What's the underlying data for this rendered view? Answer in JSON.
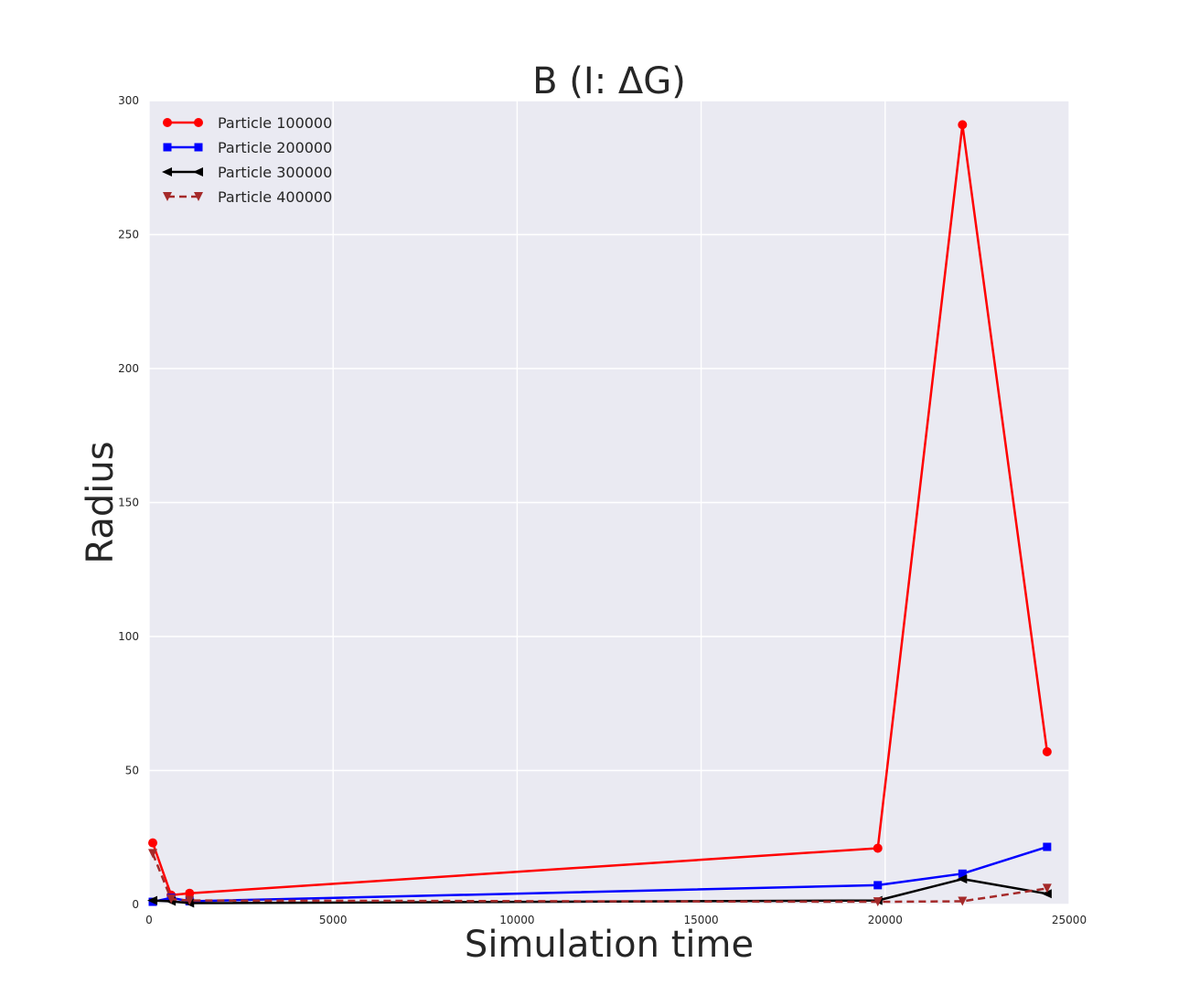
{
  "chart_data": {
    "type": "line",
    "title": "B (I: ΔG)",
    "xlabel": "Simulation time",
    "ylabel": "Radius",
    "xlim": [
      0,
      25000
    ],
    "ylim": [
      0,
      300
    ],
    "xticks": [
      0,
      5000,
      10000,
      15000,
      20000,
      25000
    ],
    "yticks": [
      0,
      50,
      100,
      150,
      200,
      250,
      300
    ],
    "grid": true,
    "legend_position": "top-left",
    "series": [
      {
        "name": "Particle 100000",
        "color": "#ff0000",
        "marker": "circle",
        "line_style": "solid",
        "x": [
          100,
          600,
          1100,
          19800,
          22100,
          24400
        ],
        "y": [
          23,
          3.5,
          4.2,
          21,
          291,
          57
        ]
      },
      {
        "name": "Particle 200000",
        "color": "#0000ff",
        "marker": "square",
        "line_style": "solid",
        "x": [
          100,
          600,
          1100,
          19800,
          22100,
          24400
        ],
        "y": [
          1,
          2.5,
          1.2,
          7.2,
          11.5,
          21.5
        ]
      },
      {
        "name": "Particle 300000",
        "color": "#000000",
        "marker": "triangle-left",
        "line_style": "solid",
        "x": [
          100,
          600,
          1100,
          19800,
          22100,
          24400
        ],
        "y": [
          1.5,
          1.2,
          0.5,
          1.5,
          9.5,
          4
        ]
      },
      {
        "name": "Particle 400000",
        "color": "#a52a2a",
        "marker": "triangle-down",
        "line_style": "dashed",
        "x": [
          100,
          600,
          1100,
          19800,
          22100,
          24400
        ],
        "y": [
          19,
          2,
          1.5,
          1,
          1.2,
          6
        ]
      }
    ]
  }
}
